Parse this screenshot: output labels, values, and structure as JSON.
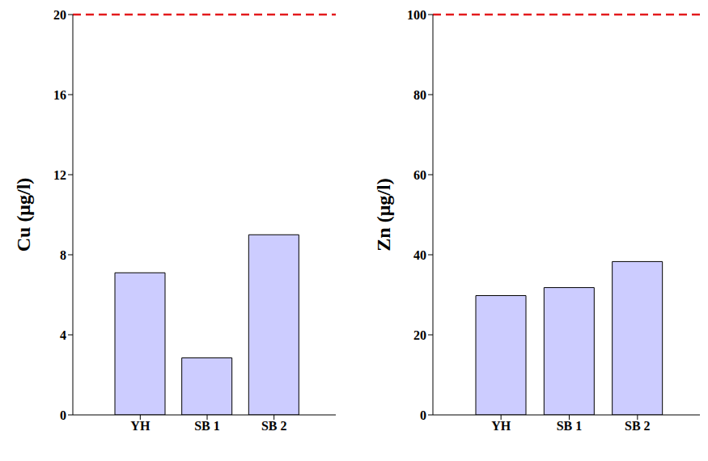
{
  "chart_data": [
    {
      "type": "bar",
      "y_label": "Cu (μg/l)",
      "categories": [
        "YH",
        "SB 1",
        "SB 2"
      ],
      "values": [
        7.1,
        2.85,
        9.0
      ],
      "color": "#ccccff",
      "ylim": [
        0,
        20
      ],
      "yticks": [
        0,
        4,
        8,
        12,
        16,
        20
      ],
      "reference_line": 20,
      "grid": false
    },
    {
      "type": "bar",
      "y_label": "Zn (μg/l)",
      "categories": [
        "YH",
        "SB 1",
        "SB 2"
      ],
      "values": [
        29.8,
        31.8,
        38.3
      ],
      "color": "#ccccff",
      "ylim": [
        0,
        100
      ],
      "yticks": [
        0,
        20,
        40,
        60,
        80,
        100
      ],
      "reference_line": 100,
      "grid": false
    }
  ]
}
